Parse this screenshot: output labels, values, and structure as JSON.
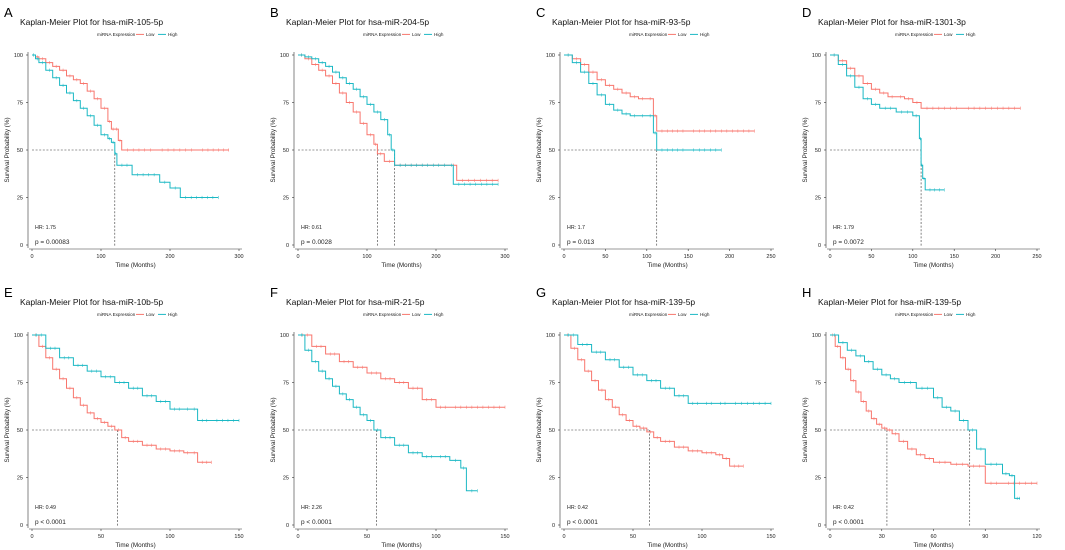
{
  "figure": {
    "legend_title": "miRNA Expression",
    "legend_low": "Low",
    "legend_high": "High",
    "colors": {
      "low": "#F8766D",
      "high": "#1BB8C4",
      "axis": "#333333",
      "median": "#333333"
    }
  },
  "chart_data": [
    {
      "panel": "A",
      "type": "line",
      "title": "Kaplan-Meier Plot for hsa-miR-105-5p",
      "xlabel": "Time (Months)",
      "ylabel": "Survival Probability (%)",
      "xlim": [
        0,
        300
      ],
      "xticks": [
        0,
        100,
        200,
        300
      ],
      "ylim": [
        0,
        100
      ],
      "yticks": [
        0,
        25,
        50,
        75,
        100
      ],
      "hr": "HR: 1.75",
      "pvalue": "p = 0.00083",
      "medians": [
        120
      ],
      "series": [
        {
          "name": "Low",
          "x": [
            0,
            5,
            10,
            20,
            30,
            40,
            50,
            60,
            70,
            80,
            90,
            100,
            110,
            115,
            120,
            125,
            130,
            180,
            240,
            285
          ],
          "y": [
            100,
            99,
            98,
            96,
            94,
            92,
            89,
            87,
            85,
            81,
            77,
            72,
            65,
            61,
            61,
            55,
            50,
            50,
            50,
            50
          ]
        },
        {
          "name": "High",
          "x": [
            0,
            5,
            10,
            20,
            30,
            40,
            50,
            60,
            70,
            80,
            90,
            100,
            110,
            115,
            120,
            123,
            145,
            185,
            200,
            215,
            270
          ],
          "y": [
            100,
            98,
            96,
            92,
            88,
            84,
            80,
            76,
            72,
            68,
            63,
            58,
            56,
            54,
            48,
            42,
            37,
            33,
            30,
            25,
            25
          ]
        }
      ]
    },
    {
      "panel": "B",
      "type": "line",
      "title": "Kaplan-Meier Plot for hsa-miR-204-5p",
      "xlabel": "Time (Months)",
      "ylabel": "Survival Probability (%)",
      "xlim": [
        0,
        300
      ],
      "xticks": [
        0,
        100,
        200,
        300
      ],
      "ylim": [
        0,
        100
      ],
      "yticks": [
        0,
        25,
        50,
        75,
        100
      ],
      "hr": "HR: 0.61",
      "pvalue": "p = 0.0028",
      "medians": [
        115,
        140
      ],
      "series": [
        {
          "name": "Low",
          "x": [
            0,
            10,
            20,
            30,
            40,
            50,
            60,
            70,
            80,
            90,
            100,
            110,
            115,
            125,
            140,
            220,
            230,
            290
          ],
          "y": [
            100,
            98,
            95,
            92,
            89,
            85,
            80,
            75,
            70,
            64,
            58,
            53,
            48,
            44,
            42,
            42,
            34,
            34
          ]
        },
        {
          "name": "High",
          "x": [
            0,
            10,
            20,
            30,
            40,
            50,
            60,
            70,
            80,
            90,
            100,
            110,
            120,
            130,
            135,
            140,
            220,
            225,
            290
          ],
          "y": [
            100,
            99,
            98,
            96,
            94,
            91,
            88,
            85,
            82,
            78,
            74,
            70,
            66,
            58,
            50,
            42,
            42,
            32,
            32
          ]
        }
      ]
    },
    {
      "panel": "C",
      "type": "line",
      "title": "Kaplan-Meier Plot for hsa-miR-93-5p",
      "xlabel": "Time (Months)",
      "ylabel": "Survival Probability (%)",
      "xlim": [
        0,
        250
      ],
      "xticks": [
        0,
        50,
        100,
        150,
        200,
        250
      ],
      "ylim": [
        0,
        100
      ],
      "yticks": [
        0,
        25,
        50,
        75,
        100
      ],
      "hr": "HR: 1.7",
      "pvalue": "p = 0.013",
      "medians": [
        112
      ],
      "series": [
        {
          "name": "Low",
          "x": [
            0,
            10,
            20,
            30,
            40,
            50,
            60,
            70,
            80,
            90,
            100,
            108,
            112,
            150,
            230
          ],
          "y": [
            100,
            98,
            95,
            91,
            87,
            84,
            82,
            80,
            78,
            77,
            77,
            68,
            60,
            60,
            60
          ]
        },
        {
          "name": "High",
          "x": [
            0,
            10,
            20,
            30,
            40,
            50,
            60,
            70,
            80,
            90,
            100,
            108,
            112,
            150,
            190
          ],
          "y": [
            100,
            96,
            91,
            85,
            79,
            74,
            71,
            69,
            68,
            68,
            68,
            59,
            50,
            50,
            50
          ]
        }
      ]
    },
    {
      "panel": "D",
      "type": "line",
      "title": "Kaplan-Meier Plot for hsa-miR-1301-3p",
      "xlabel": "Time (Months)",
      "ylabel": "Survival Probability (%)",
      "xlim": [
        0,
        250
      ],
      "xticks": [
        0,
        50,
        100,
        150,
        200,
        250
      ],
      "ylim": [
        0,
        100
      ],
      "yticks": [
        0,
        25,
        50,
        75,
        100
      ],
      "hr": "HR: 1.79",
      "pvalue": "p = 0.0072",
      "medians": [
        110
      ],
      "series": [
        {
          "name": "Low",
          "x": [
            0,
            10,
            20,
            30,
            40,
            50,
            60,
            70,
            80,
            90,
            100,
            110,
            160,
            230
          ],
          "y": [
            100,
            97,
            93,
            89,
            85,
            82,
            80,
            78,
            78,
            77,
            75,
            72,
            72,
            72
          ]
        },
        {
          "name": "High",
          "x": [
            0,
            10,
            20,
            30,
            40,
            50,
            60,
            80,
            100,
            108,
            110,
            112,
            115,
            138
          ],
          "y": [
            100,
            95,
            89,
            83,
            77,
            74,
            72,
            70,
            68,
            56,
            42,
            35,
            29,
            29
          ]
        }
      ]
    },
    {
      "panel": "E",
      "type": "line",
      "title": "Kaplan-Meier Plot for hsa-miR-10b-5p",
      "xlabel": "Time (Months)",
      "ylabel": "Survival Probability (%)",
      "xlim": [
        0,
        150
      ],
      "xticks": [
        0,
        50,
        100,
        150
      ],
      "ylim": [
        0,
        100
      ],
      "yticks": [
        0,
        25,
        50,
        75,
        100
      ],
      "hr": "HR: 0.49",
      "pvalue": "p < 0.0001",
      "medians": [
        62
      ],
      "series": [
        {
          "name": "Low",
          "x": [
            0,
            5,
            10,
            15,
            20,
            25,
            30,
            35,
            40,
            45,
            50,
            55,
            60,
            65,
            70,
            80,
            90,
            100,
            110,
            115,
            120,
            130
          ],
          "y": [
            100,
            94,
            88,
            82,
            77,
            72,
            67,
            63,
            59,
            56,
            54,
            52,
            50,
            46,
            44,
            42,
            40,
            39,
            38,
            38,
            33,
            33
          ]
        },
        {
          "name": "High",
          "x": [
            0,
            10,
            20,
            30,
            40,
            50,
            60,
            70,
            80,
            90,
            100,
            110,
            115,
            120,
            130,
            150
          ],
          "y": [
            100,
            93,
            88,
            84,
            81,
            78,
            75,
            72,
            68,
            65,
            61,
            61,
            61,
            55,
            55,
            55
          ]
        }
      ]
    },
    {
      "panel": "F",
      "type": "line",
      "title": "Kaplan-Meier Plot for hsa-miR-21-5p",
      "xlabel": "Time (Months)",
      "ylabel": "Survival Probability (%)",
      "xlim": [
        0,
        150
      ],
      "xticks": [
        0,
        50,
        100,
        150
      ],
      "ylim": [
        0,
        100
      ],
      "yticks": [
        0,
        25,
        50,
        75,
        100
      ],
      "hr": "HR: 2.26",
      "pvalue": "p < 0.0001",
      "medians": [
        57
      ],
      "series": [
        {
          "name": "Low",
          "x": [
            0,
            10,
            20,
            30,
            40,
            50,
            60,
            70,
            80,
            90,
            100,
            110,
            150
          ],
          "y": [
            100,
            94,
            90,
            86,
            83,
            80,
            77,
            75,
            72,
            66,
            62,
            62,
            62
          ]
        },
        {
          "name": "High",
          "x": [
            0,
            5,
            10,
            15,
            20,
            25,
            30,
            35,
            40,
            45,
            50,
            55,
            60,
            70,
            80,
            90,
            100,
            110,
            118,
            122,
            130
          ],
          "y": [
            100,
            92,
            86,
            81,
            77,
            73,
            69,
            66,
            62,
            58,
            55,
            50,
            46,
            42,
            38,
            36,
            36,
            34,
            30,
            18,
            18
          ]
        }
      ]
    },
    {
      "panel": "G",
      "type": "line",
      "title": "Kaplan-Meier Plot for hsa-miR-139-5p",
      "xlabel": "Time (Months)",
      "ylabel": "Survival Probability (%)",
      "xlim": [
        0,
        150
      ],
      "xticks": [
        0,
        50,
        100,
        150
      ],
      "ylim": [
        0,
        100
      ],
      "yticks": [
        0,
        25,
        50,
        75,
        100
      ],
      "hr": "HR: 0.42",
      "pvalue": "p < 0.0001",
      "medians": [
        62
      ],
      "series": [
        {
          "name": "Low",
          "x": [
            0,
            5,
            10,
            15,
            20,
            25,
            30,
            35,
            40,
            45,
            50,
            55,
            60,
            65,
            70,
            80,
            90,
            100,
            110,
            115,
            120,
            130
          ],
          "y": [
            100,
            93,
            87,
            81,
            76,
            71,
            66,
            62,
            58,
            55,
            52,
            51,
            49,
            46,
            44,
            41,
            39,
            38,
            37,
            35,
            31,
            31
          ]
        },
        {
          "name": "High",
          "x": [
            0,
            10,
            20,
            30,
            40,
            50,
            60,
            70,
            80,
            90,
            100,
            110,
            120,
            150
          ],
          "y": [
            100,
            95,
            91,
            87,
            83,
            79,
            76,
            72,
            68,
            64,
            64,
            64,
            64,
            64
          ]
        }
      ]
    },
    {
      "panel": "H",
      "type": "line",
      "title": "Kaplan-Meier Plot for hsa-miR-139-5p",
      "xlabel": "Time (Months)",
      "ylabel": "Survival Probability (%)",
      "xlim": [
        0,
        120
      ],
      "xticks": [
        0,
        30,
        60,
        90,
        120
      ],
      "ylim": [
        0,
        100
      ],
      "yticks": [
        0,
        25,
        50,
        75,
        100
      ],
      "hr": "HR: 0.42",
      "pvalue": "p < 0.0001",
      "medians": [
        33,
        81
      ],
      "series": [
        {
          "name": "Low",
          "x": [
            0,
            3,
            6,
            9,
            12,
            15,
            18,
            21,
            24,
            27,
            30,
            33,
            36,
            40,
            45,
            50,
            55,
            60,
            70,
            80,
            90,
            100,
            120
          ],
          "y": [
            100,
            94,
            88,
            82,
            76,
            70,
            65,
            60,
            56,
            53,
            51,
            50,
            48,
            44,
            40,
            37,
            35,
            33,
            32,
            31,
            22,
            22,
            22
          ]
        },
        {
          "name": "High",
          "x": [
            0,
            5,
            10,
            15,
            20,
            25,
            30,
            35,
            40,
            50,
            60,
            65,
            70,
            75,
            80,
            85,
            90,
            100,
            104,
            107,
            110
          ],
          "y": [
            100,
            96,
            92,
            89,
            86,
            82,
            79,
            77,
            75,
            72,
            67,
            62,
            60,
            55,
            50,
            40,
            32,
            27,
            26,
            14,
            14
          ]
        }
      ]
    }
  ]
}
